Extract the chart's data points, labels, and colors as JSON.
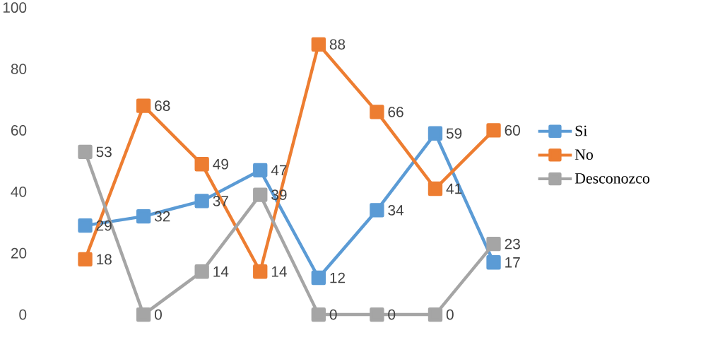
{
  "chart_data": {
    "type": "line",
    "categories": [
      null,
      null,
      null,
      null,
      null,
      null,
      null,
      null
    ],
    "series": [
      {
        "name": "Si",
        "color": "#5b9bd5",
        "values": [
          29,
          32,
          37,
          47,
          12,
          34,
          59,
          17
        ]
      },
      {
        "name": "No",
        "color": "#ed7d31",
        "values": [
          18,
          68,
          49,
          14,
          88,
          66,
          41,
          60
        ]
      },
      {
        "name": "Desconozco",
        "color": "#a5a5a5",
        "values": [
          53,
          0,
          14,
          39,
          0,
          0,
          0,
          23
        ]
      }
    ],
    "ylim": [
      0,
      100
    ],
    "yticks": [
      0,
      20,
      40,
      60,
      80,
      100
    ],
    "marker": "square",
    "legend": "right",
    "data_labels": true,
    "tick_labels": "y"
  }
}
